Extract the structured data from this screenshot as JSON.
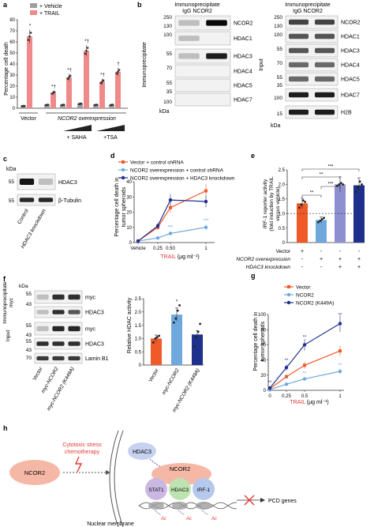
{
  "panel_a": {
    "letter": "a",
    "legend": [
      {
        "label": "+ Vehicle",
        "color": "#9e9e9e"
      },
      {
        "label": "+ TRAIL",
        "color": "#f08a8a"
      }
    ],
    "ylabel": "Percentage cell death",
    "yticks": [
      "0",
      "10",
      "20",
      "30",
      "40",
      "50",
      "60",
      "70",
      "80"
    ],
    "group_vector": "Vector",
    "group_over": "NCOR2 overexpression",
    "saha": "+ SAHA",
    "tsa": "+TSA",
    "marks": [
      "*",
      "*†",
      "*†",
      "*†",
      "*†",
      "†"
    ]
  },
  "panel_b": {
    "letter": "b",
    "ip_title1": "Immunoprecipitate",
    "ip_title2": "IgG  NCOR2",
    "side_ip": "Immunoprecipitate",
    "side_input": "Input",
    "mw_left": [
      "250",
      "130",
      "100",
      "55",
      "70",
      "55",
      "35",
      "100"
    ],
    "mw_right": [
      "250",
      "130",
      "100",
      "55",
      "70",
      "55",
      "35",
      "100",
      "15"
    ],
    "bands_left": [
      "NCOR2",
      "HDAC1",
      "HDAC3",
      "HDAC4",
      "HDAC5",
      "HDAC7"
    ],
    "bands_right": [
      "NCOR2",
      "HDAC1",
      "HDAC3",
      "HDAC4",
      "HDAC5",
      "HDAC7",
      "H2B"
    ],
    "kda": "kDa"
  },
  "panel_c": {
    "letter": "c",
    "kda": "kDa",
    "mw": [
      "55",
      "55"
    ],
    "bands": [
      "HDAC3",
      "β-Tubulin"
    ],
    "lanes": [
      "Control",
      "HDAC3 knockdown"
    ]
  },
  "panel_d": {
    "letter": "d",
    "legend": [
      {
        "label": "Vector + control shRNA",
        "color": "#f05a28"
      },
      {
        "label": "NCOR2 overexpression + control shRNA",
        "color": "#6fa8dc"
      },
      {
        "label": "NCOR2 overexpression + HDAC3 knockdown",
        "color": "#1f2f8c"
      }
    ],
    "ylabel1": "Percentage cell death in",
    "ylabel2": "tumor spheroids",
    "yticks": [
      "0",
      "10",
      "20",
      "30",
      "40"
    ],
    "xticks": [
      "Vehicle",
      "0.25",
      "0.50",
      "1"
    ],
    "xlabel": "TRAIL",
    "xunit": "(μg ml⁻¹)",
    "stars": [
      "***",
      "***"
    ]
  },
  "panel_e": {
    "letter": "e",
    "ylabel1": "IRF-1 reporter activity",
    "ylabel2": "(fold induction by TRAIL",
    "ylabel3": "versus vehicle)",
    "yticks": [
      "0",
      "0.5",
      "1.0",
      "1.5",
      "2.0",
      "2.5"
    ],
    "sig": [
      "**",
      "***",
      "**",
      "***"
    ],
    "rows": [
      {
        "label": "Vector",
        "marks": [
          "+",
          "-",
          "-",
          "-"
        ]
      },
      {
        "label": "NCOR2 overexpression",
        "marks": [
          "-",
          "+",
          "+",
          "+"
        ]
      },
      {
        "label": "HDAC3 knockdown",
        "marks": [
          "-",
          "-",
          "+",
          "+"
        ]
      }
    ]
  },
  "panel_f": {
    "letter": "f",
    "side_ip": "Immunoprecipitate",
    "side_ip2": "myc",
    "side_input": "Input",
    "kda": "kDa",
    "mw": [
      "55",
      "43",
      "55",
      "43",
      "55",
      "43",
      "70"
    ],
    "bands": [
      "myc",
      "HDAC3",
      "myc",
      "HDAC3",
      "Lamin B1"
    ],
    "lanes": [
      "Vector",
      "myc-NCOR2",
      "myc-NCOR2 (K449A)"
    ],
    "ylabel": "Relative HDAC activity",
    "yticks": [
      "0",
      "0.5",
      "1.0",
      "1.5",
      "2.0",
      "2.5"
    ],
    "star": "*"
  },
  "panel_g": {
    "letter": "g",
    "legend": [
      {
        "label": "Vector",
        "color": "#f05a28"
      },
      {
        "label": "NCOR2",
        "color": "#6fa8dc"
      },
      {
        "label": "NCOR2 (K449A)",
        "color": "#1f2f8c"
      }
    ],
    "ylabel1": "Percentage cell death in",
    "ylabel2": "tumor spheroids",
    "yticks": [
      "0",
      "20",
      "40",
      "60",
      "80",
      "100"
    ],
    "xticks": [
      "0",
      "0.25",
      "0.5",
      "1"
    ],
    "xlabel": "TRAIL",
    "xunit": "(μg ml⁻¹)",
    "stars_top": [
      "**",
      "**",
      "**",
      "**"
    ],
    "stars_bottom": [
      "**",
      "**",
      "**"
    ]
  },
  "panel_h": {
    "letter": "h",
    "ncor2_left": "NCOR2",
    "stress1": "Cytotoxic stress",
    "stress2": "chemotherapy",
    "hdac3_free": "HDAC3",
    "ncor2_complex": "NCOR2",
    "stat1": "STAT1",
    "hdac3": "HDAC3",
    "irf1": "IRF-1",
    "pcd": "PCD genes",
    "ac": [
      "Ac",
      "Ac",
      "Ac"
    ],
    "membrane": "Nuclear membrane"
  },
  "chart_data": [
    {
      "panel": "a",
      "type": "bar",
      "categories": [
        "Vector",
        "NCOR2 overexpression",
        "NCOR2 overexpression + SAHA (low)",
        "NCOR2 overexpression + SAHA (high)",
        "NCOR2 overexpression + TSA (low)",
        "NCOR2 overexpression + TSA (high)"
      ],
      "series": [
        {
          "name": "+ Vehicle",
          "values": [
            2,
            3,
            3,
            4,
            3,
            3
          ]
        },
        {
          "name": "+ TRAIL",
          "values": [
            65,
            14,
            28,
            52,
            24,
            33
          ]
        }
      ],
      "ylabel": "Percentage cell death",
      "ylim": [
        0,
        80
      ]
    },
    {
      "panel": "d",
      "type": "line",
      "x": [
        "Vehicle",
        "0.25",
        "0.50",
        "1"
      ],
      "series": [
        {
          "name": "Vector + control shRNA",
          "values": [
            1,
            10,
            23,
            34
          ]
        },
        {
          "name": "NCOR2 overexpression + control shRNA",
          "values": [
            1,
            3,
            6,
            10
          ]
        },
        {
          "name": "NCOR2 overexpression + HDAC3 knockdown",
          "values": [
            1,
            11,
            28,
            27
          ]
        }
      ],
      "ylabel": "Percentage cell death in tumor spheroids",
      "xlabel": "TRAIL (μg ml⁻¹)",
      "ylim": [
        0,
        40
      ]
    },
    {
      "panel": "e",
      "type": "bar",
      "categories": [
        "Vector",
        "NCOR2 overexpression",
        "NCOR2 overexpression + HDAC3 knockdown (1)",
        "NCOR2 overexpression + HDAC3 knockdown (2)"
      ],
      "values": [
        1.35,
        0.78,
        2.0,
        1.97
      ],
      "colors": [
        "#f05a28",
        "#6fa8dc",
        "#8e8fd0",
        "#1f2f8c"
      ],
      "ylabel": "IRF-1 reporter activity (fold induction by TRAIL versus vehicle)",
      "ylim": [
        0,
        2.5
      ]
    },
    {
      "panel": "f",
      "type": "bar",
      "categories": [
        "Vector",
        "myc-NCOR2",
        "myc-NCOR2 (K449A)"
      ],
      "values": [
        1.0,
        1.9,
        1.15
      ],
      "colors": [
        "#f05a28",
        "#6fa8dc",
        "#1f2f8c"
      ],
      "ylabel": "Relative HDAC activity",
      "ylim": [
        0,
        2.5
      ]
    },
    {
      "panel": "g",
      "type": "line",
      "x": [
        0,
        0.25,
        0.5,
        1
      ],
      "series": [
        {
          "name": "Vector",
          "values": [
            2,
            18,
            33,
            52
          ]
        },
        {
          "name": "NCOR2",
          "values": [
            1,
            8,
            15,
            25
          ]
        },
        {
          "name": "NCOR2 (K449A)",
          "values": [
            3,
            30,
            60,
            88
          ]
        }
      ],
      "ylabel": "Percentage cell death in tumor spheroids",
      "xlabel": "TRAIL (μg ml⁻¹)",
      "ylim": [
        0,
        100
      ]
    }
  ]
}
